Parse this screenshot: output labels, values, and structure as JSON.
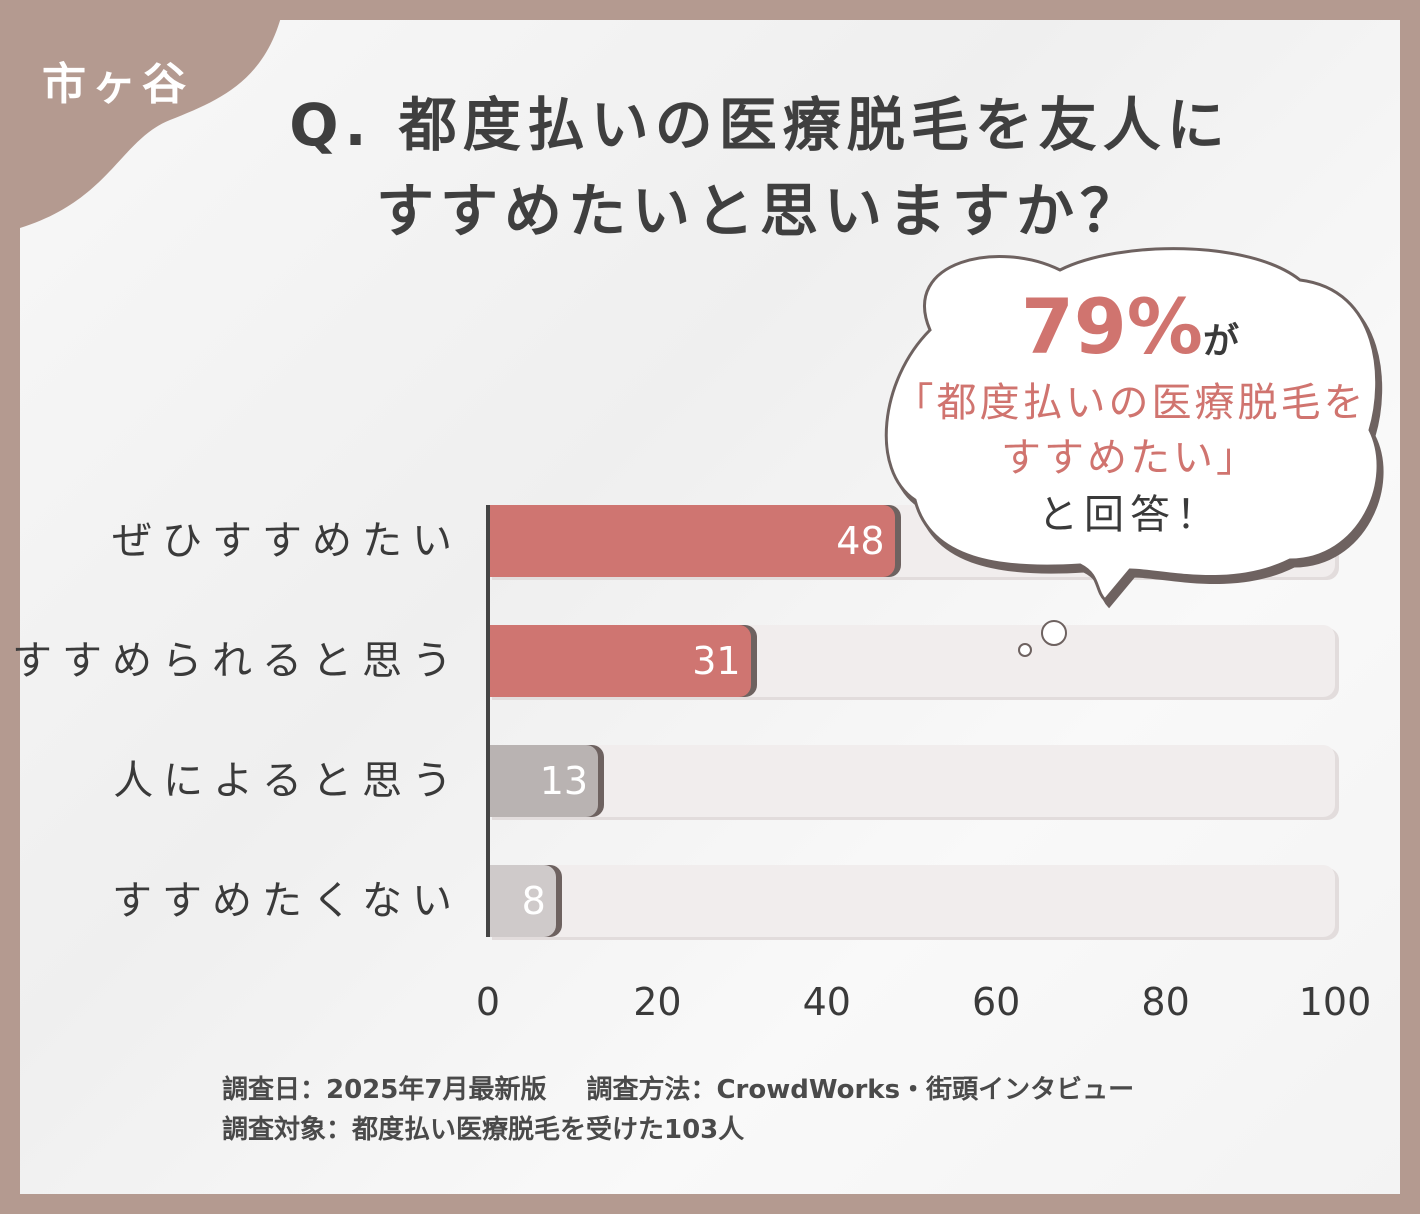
{
  "location_tag": "市ヶ谷",
  "title": {
    "line1": "Q. 都度払いの医療脱毛を友人に",
    "line2": "すすめたいと思いますか？"
  },
  "callout": {
    "percent": "79%",
    "suffix": "が",
    "line1": "「都度払いの医療脱毛を",
    "line2": "すすめたい」",
    "line3": "と回答！"
  },
  "footer": {
    "date": "調査日：2025年7月最新版",
    "method": "調査方法：CrowdWorks・街頭インタビュー",
    "target": "調査対象：都度払い医療脱毛を受けた103人"
  },
  "colors": {
    "highlight": "#cf7571",
    "muted": "#b9b3b2",
    "muted_light": "#cfcaca",
    "track": "#f1eded",
    "border": "#b49a90"
  },
  "chart_data": {
    "type": "bar",
    "orientation": "horizontal",
    "categories": [
      "ぜひすすめたい",
      "すすめられると思う",
      "人によると思う",
      "すすめたくない"
    ],
    "values": [
      48,
      31,
      13,
      8
    ],
    "xlim": [
      0,
      100
    ],
    "xticks": [
      "0",
      "20",
      "40",
      "60",
      "80",
      "100"
    ],
    "xlabel": "",
    "ylabel": ""
  }
}
